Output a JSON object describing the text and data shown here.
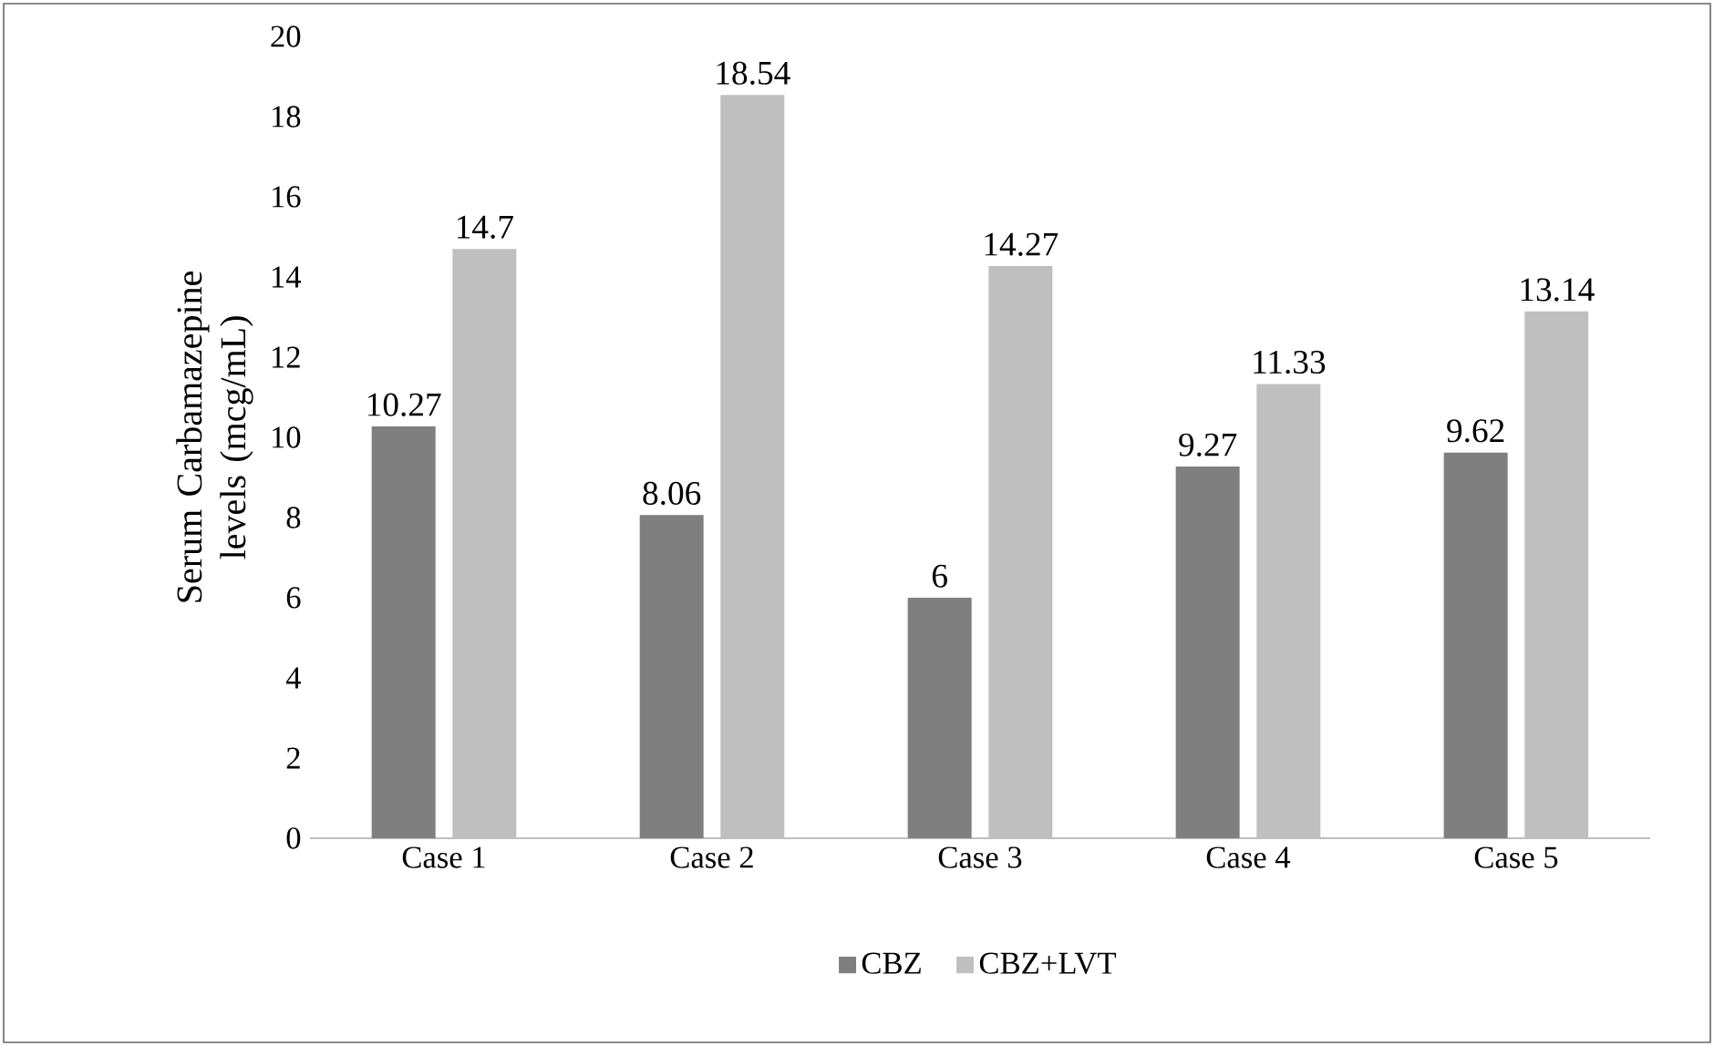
{
  "chart_data": {
    "type": "bar",
    "ylabel": "Serum Carbamazepine levels (mcg/mL)",
    "categories": [
      "Case 1",
      "Case 2",
      "Case 3",
      "Case 4",
      "Case 5"
    ],
    "series": [
      {
        "name": "CBZ",
        "color": "#7f7f7f",
        "values": [
          10.27,
          8.06,
          6,
          9.27,
          9.62
        ]
      },
      {
        "name": "CBZ+LVT",
        "color": "#bfbfbf",
        "values": [
          14.7,
          18.54,
          14.27,
          11.33,
          13.14
        ]
      }
    ],
    "ylim": [
      0,
      20
    ],
    "yticks": [
      0,
      2,
      4,
      6,
      8,
      10,
      12,
      14,
      16,
      18,
      20
    ],
    "data_labels": true,
    "legend": "bottom",
    "grid": false
  }
}
